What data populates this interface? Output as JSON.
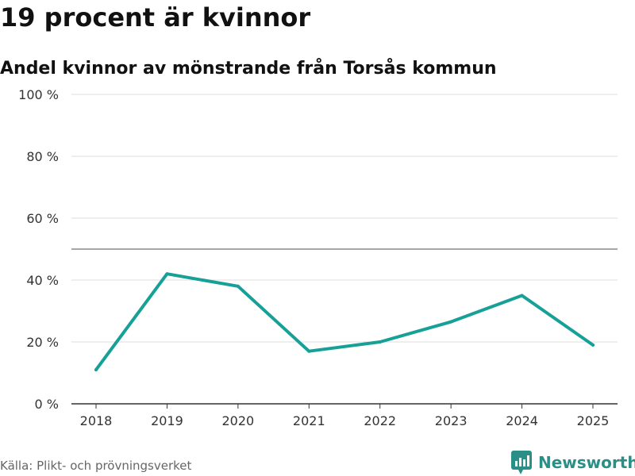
{
  "title": "19 procent är kvinnor",
  "subtitle": "Andel kvinnor av mönstrande från Torsås kommun",
  "source": "Källa: Plikt- och prövningsverket",
  "brand": {
    "name": "Newsworthy",
    "icon": "newsworthy-logo-icon",
    "color": "#2a8f87"
  },
  "colors": {
    "line": "#16a097",
    "grid": "#dddddd",
    "reference": "#888888",
    "axis": "#333333"
  },
  "chart_data": {
    "type": "line",
    "categories": [
      "2018",
      "2019",
      "2020",
      "2021",
      "2022",
      "2023",
      "2024",
      "2025"
    ],
    "series": [
      {
        "values": [
          11,
          42,
          38,
          17,
          20,
          26.5,
          35,
          19
        ]
      }
    ],
    "ylim": [
      0,
      100
    ],
    "yticks": [
      0,
      20,
      40,
      60,
      80,
      100
    ],
    "ytick_labels": [
      "0 %",
      "20 %",
      "40 %",
      "60 %",
      "80 %",
      "100 %"
    ],
    "reference_line": 50,
    "grid": true,
    "legend": "none"
  }
}
